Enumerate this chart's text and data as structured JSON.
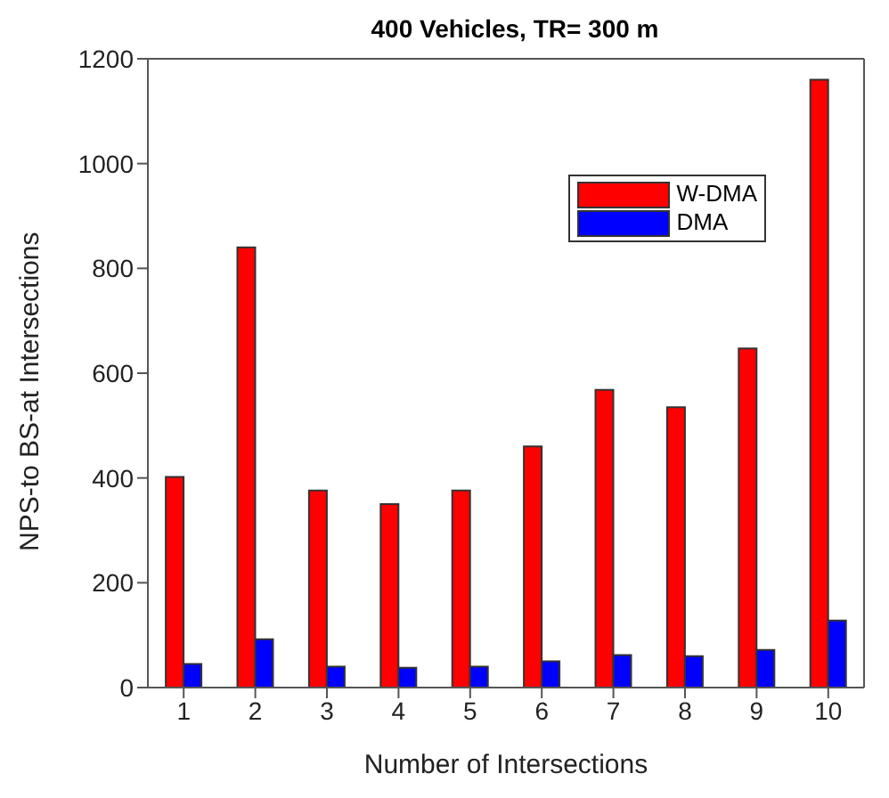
{
  "chart_data": {
    "type": "bar",
    "title": "400 Vehicles, TR= 300 m",
    "xlabel": "Number of Intersections",
    "ylabel": "NPS-to BS-at Intersections",
    "categories": [
      "1",
      "2",
      "3",
      "4",
      "5",
      "6",
      "7",
      "8",
      "9",
      "10"
    ],
    "series": [
      {
        "name": "W-DMA",
        "color": "#ff0000",
        "values": [
          402,
          840,
          376,
          350,
          376,
          460,
          568,
          535,
          647,
          1160
        ]
      },
      {
        "name": "DMA",
        "color": "#0000ff",
        "values": [
          45,
          92,
          40,
          38,
          40,
          50,
          62,
          60,
          72,
          128
        ]
      }
    ],
    "ylim": [
      0,
      1200
    ],
    "yticks": [
      0,
      200,
      400,
      600,
      800,
      1000,
      1200
    ],
    "grid": false,
    "legend": "top right"
  }
}
